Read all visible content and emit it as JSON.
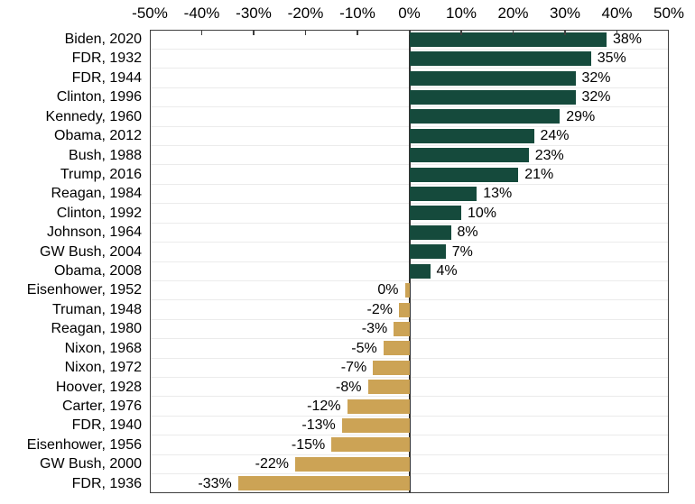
{
  "chart_data": {
    "type": "bar",
    "orientation": "horizontal",
    "title": "",
    "xlabel": "",
    "ylabel": "",
    "xlim": [
      -50,
      50
    ],
    "x_tick_labels": [
      "-50%",
      "-40%",
      "-30%",
      "-20%",
      "-10%",
      "0%",
      "10%",
      "20%",
      "30%",
      "40%",
      "50%"
    ],
    "grid": "horizontal category separator lines only",
    "legend": "none",
    "axis_position": "top",
    "categories": [
      "Biden, 2020",
      "FDR, 1932",
      "FDR, 1944",
      "Clinton, 1996",
      "Kennedy, 1960",
      "Obama, 2012",
      "Bush, 1988",
      "Trump, 2016",
      "Reagan, 1984",
      "Clinton, 1992",
      "Johnson, 1964",
      "GW Bush, 2004",
      "Obama, 2008",
      "Eisenhower, 1952",
      "Truman, 1948",
      "Reagan, 1980",
      "Nixon, 1968",
      "Nixon, 1972",
      "Hoover, 1928",
      "Carter, 1976",
      "FDR, 1940",
      "Eisenhower, 1956",
      "GW Bush, 2000",
      "FDR, 1936"
    ],
    "values": [
      38,
      35,
      32,
      32,
      29,
      24,
      23,
      21,
      13,
      10,
      8,
      7,
      4,
      0,
      -2,
      -3,
      -5,
      -7,
      -8,
      -12,
      -13,
      -15,
      -22,
      -33
    ],
    "bar_labels": [
      "38%",
      "35%",
      "32%",
      "32%",
      "29%",
      "24%",
      "23%",
      "21%",
      "13%",
      "10%",
      "8%",
      "7%",
      "4%",
      "0%",
      "-2%",
      "-3%",
      "-5%",
      "-7%",
      "-8%",
      "-12%",
      "-13%",
      "-15%",
      "-22%",
      "-33%"
    ],
    "colors": {
      "positive_bar": "#154a3c",
      "negative_bar": "#cca355",
      "axis_line": "#3f3f3f",
      "zero_line": "#333333",
      "gridline": "#ebebeb",
      "text": "#000000",
      "background": "#ffffff"
    }
  }
}
